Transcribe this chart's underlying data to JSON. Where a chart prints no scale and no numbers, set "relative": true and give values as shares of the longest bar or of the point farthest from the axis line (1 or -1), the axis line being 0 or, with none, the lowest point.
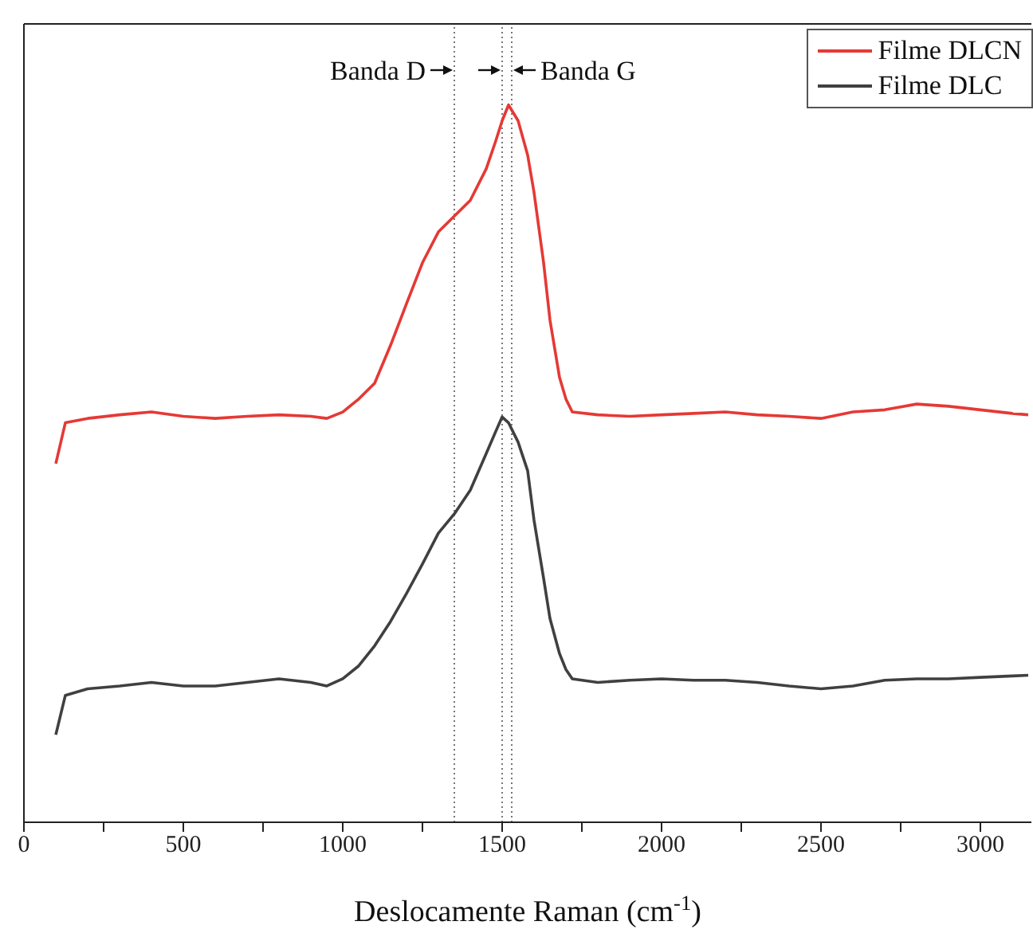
{
  "chart_data": {
    "type": "line",
    "relative": true,
    "xlabel": "Deslocamente Raman (cm$^{-1}$)",
    "xlim": [
      0,
      3160
    ],
    "xticks": [
      0,
      {
        "value": 250,
        "label": null
      },
      500,
      {
        "value": 750,
        "label": null
      },
      1000,
      {
        "value": 1250,
        "label": null
      },
      1500,
      {
        "value": 1750,
        "label": null
      },
      2000,
      {
        "value": 2250,
        "label": null
      },
      2500,
      {
        "value": 2750,
        "label": null
      },
      3000
    ],
    "x": [
      100,
      130,
      200,
      300,
      400,
      500,
      600,
      700,
      800,
      900,
      950,
      1000,
      1050,
      1100,
      1150,
      1200,
      1250,
      1300,
      1350,
      1400,
      1450,
      1480,
      1500,
      1520,
      1550,
      1580,
      1600,
      1630,
      1650,
      1680,
      1700,
      1720,
      1800,
      1900,
      2000,
      2100,
      2200,
      2300,
      2400,
      2500,
      2600,
      2700,
      2800,
      2900,
      3000,
      3100,
      3150
    ],
    "series": [
      {
        "name": "Filme DLCN",
        "color": "#e53935",
        "values": [
          0.5,
          0.557,
          0.563,
          0.568,
          0.572,
          0.566,
          0.563,
          0.566,
          0.568,
          0.566,
          0.563,
          0.572,
          0.59,
          0.612,
          0.665,
          0.723,
          0.78,
          0.823,
          0.845,
          0.867,
          0.911,
          0.95,
          0.978,
          1.0,
          0.978,
          0.93,
          0.878,
          0.78,
          0.7,
          0.62,
          0.59,
          0.572,
          0.568,
          0.566,
          0.568,
          0.57,
          0.572,
          0.568,
          0.566,
          0.563,
          0.572,
          0.575,
          0.583,
          0.58,
          0.575,
          0.57,
          0.568
        ]
      },
      {
        "name": "Filme DLC",
        "color": "#404040",
        "values": [
          0.122,
          0.177,
          0.186,
          0.19,
          0.195,
          0.19,
          0.19,
          0.195,
          0.2,
          0.195,
          0.19,
          0.2,
          0.218,
          0.246,
          0.28,
          0.319,
          0.36,
          0.403,
          0.43,
          0.463,
          0.514,
          0.545,
          0.565,
          0.557,
          0.53,
          0.49,
          0.421,
          0.34,
          0.284,
          0.235,
          0.213,
          0.2,
          0.195,
          0.198,
          0.2,
          0.198,
          0.198,
          0.195,
          0.19,
          0.186,
          0.19,
          0.198,
          0.2,
          0.2,
          0.202,
          0.204,
          0.205
        ]
      }
    ],
    "ref_lines": [
      {
        "axis": "x",
        "value": 1350,
        "color": "#777777",
        "line_style": "dotted"
      },
      {
        "axis": "x",
        "value": 1500,
        "color": "#777777",
        "line_style": "dotted"
      },
      {
        "axis": "x",
        "value": 1530,
        "color": "#777777",
        "line_style": "dotted"
      }
    ],
    "annotations": [
      "Banda D",
      "Banda G"
    ],
    "legend": "top right",
    "marker": "none",
    "line_style": "solid",
    "grid": false
  }
}
